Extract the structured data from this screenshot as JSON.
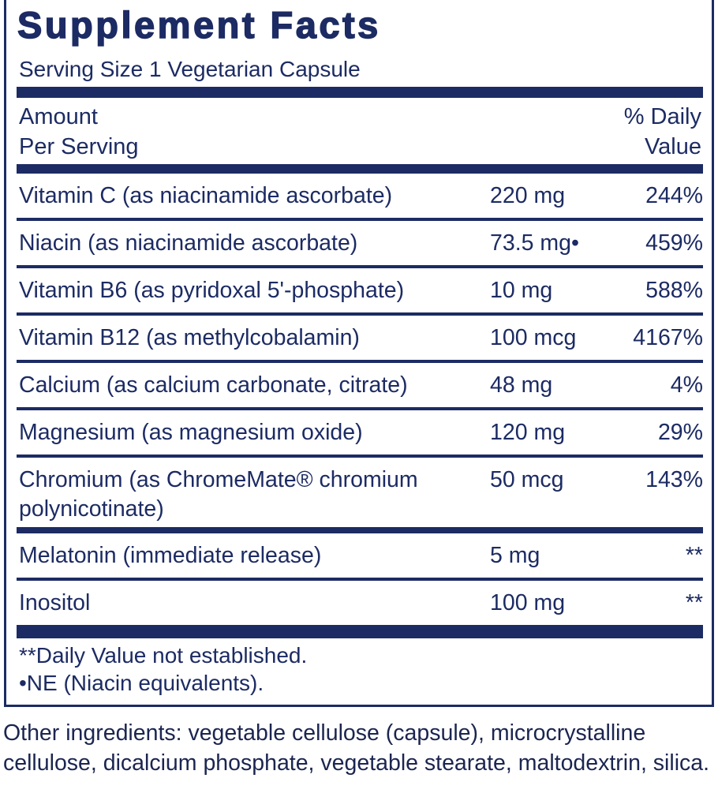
{
  "header": {
    "title": "Supplement Facts",
    "serving_size": "Serving Size 1 Vegetarian Capsule",
    "amount_label_1": "Amount",
    "amount_label_2": "Per Serving",
    "dv_label_1": "% Daily",
    "dv_label_2": "Value"
  },
  "nutrients": [
    {
      "name": "Vitamin C (as niacinamide ascorbate)",
      "amount": "220 mg",
      "dv": "244%"
    },
    {
      "name": "Niacin (as niacinamide ascorbate)",
      "amount": "73.5 mg•",
      "dv": "459%"
    },
    {
      "name": "Vitamin B6 (as pyridoxal 5'-phosphate)",
      "amount": "10 mg",
      "dv": "588%"
    },
    {
      "name": "Vitamin B12 (as methylcobalamin)",
      "amount": "100 mcg",
      "dv": "4167%"
    },
    {
      "name": "Calcium (as calcium carbonate, citrate)",
      "amount": "48 mg",
      "dv": "4%"
    },
    {
      "name": "Magnesium (as magnesium oxide)",
      "amount": "120 mg",
      "dv": "29%"
    },
    {
      "name": "Chromium (as ChromeMate® chromium polynicotinate)",
      "amount": "50 mcg",
      "dv": "143%"
    }
  ],
  "other_nutrients": [
    {
      "name": "Melatonin (immediate release)",
      "amount": "5 mg",
      "dv": "**"
    },
    {
      "name": "Inositol",
      "amount": "100 mg",
      "dv": "**"
    }
  ],
  "footnotes": [
    "**Daily Value not established.",
    "•NE (Niacin equivalents)."
  ],
  "other_ingredients": "Other ingredients: vegetable cellulose (capsule), microcrystalline cellulose, dicalcium phosphate, vegetable stearate, maltodextrin, silica."
}
